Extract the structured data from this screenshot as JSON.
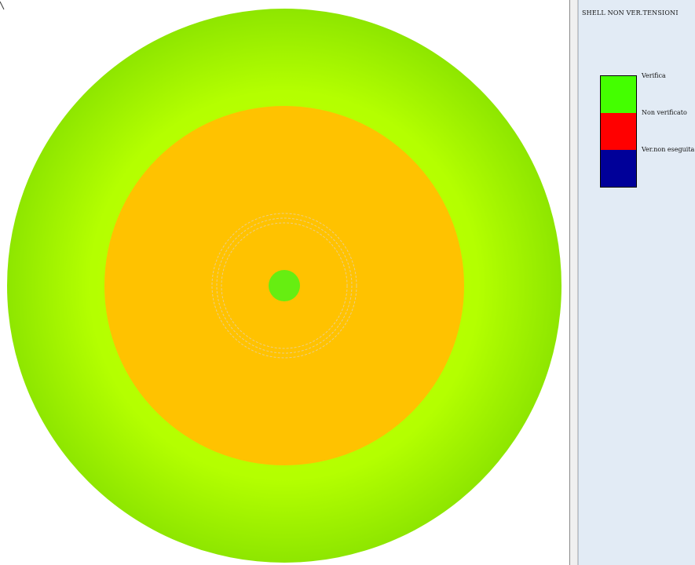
{
  "legend": {
    "title": "SHELL NON VER.TENSIONI",
    "items": [
      {
        "label": "Verifica",
        "color": "#44ff00"
      },
      {
        "label": "Non verificato",
        "color": "#ff0000"
      },
      {
        "label": "Ver.non eseguita",
        "color": "#000099"
      }
    ]
  },
  "model": {
    "outer_ring_color": "#a6ff00",
    "outer_ring_edge_color": "#8be600",
    "middle_disk_color": "#ffc200",
    "center_disk_color": "#66ee11",
    "inner_rings_color": "#e8c878"
  }
}
